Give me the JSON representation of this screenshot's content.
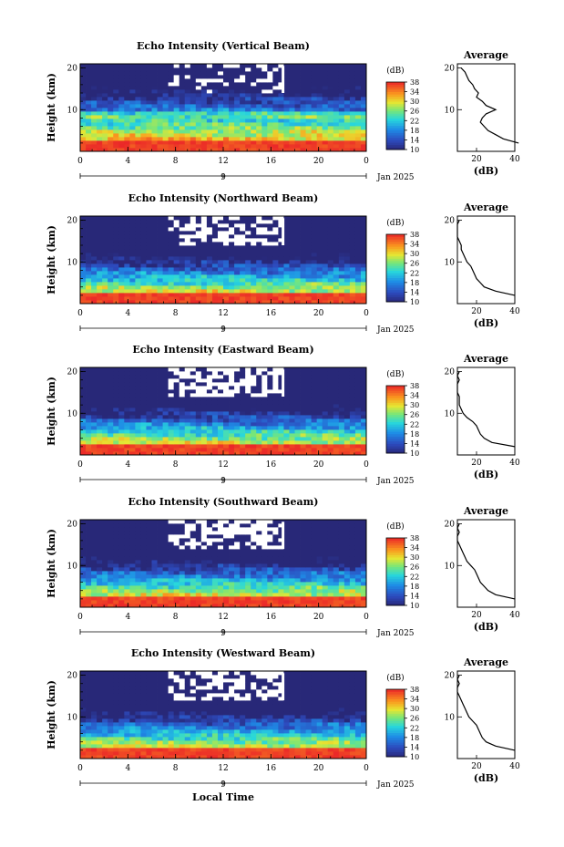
{
  "chart_data": [
    {
      "type": "heatmap",
      "title": "Echo Intensity (Vertical Beam)",
      "ylabel": "Height (km)",
      "xticks": [
        "0",
        "4",
        "8",
        "12",
        "16",
        "20",
        "0"
      ],
      "yticks": [
        "10",
        "20"
      ],
      "date_marker": "9",
      "date_label": "Jan 2025",
      "colorbar_unit": "(dB)",
      "colorbar_ticks": [
        "10",
        "14",
        "18",
        "22",
        "26",
        "30",
        "34",
        "38"
      ],
      "average": {
        "title": "Average",
        "xlabel": "(dB)",
        "xticks": [
          "20",
          "40"
        ],
        "yticks": [
          "10",
          "20"
        ],
        "height_km": [
          2,
          3,
          4,
          5,
          6,
          7,
          8,
          9,
          10,
          11,
          12,
          13,
          14,
          15,
          16,
          17,
          18,
          19,
          20
        ],
        "db": [
          42,
          34,
          30,
          26,
          24,
          22,
          23,
          25,
          30,
          25,
          23,
          20,
          21,
          19,
          18,
          16,
          15,
          14,
          12
        ]
      }
    },
    {
      "type": "heatmap",
      "title": "Echo Intensity (Northward Beam)",
      "ylabel": "Height (km)",
      "xticks": [
        "0",
        "4",
        "8",
        "12",
        "16",
        "20",
        "0"
      ],
      "yticks": [
        "10",
        "20"
      ],
      "date_marker": "9",
      "date_label": "Jan 2025",
      "colorbar_unit": "(dB)",
      "colorbar_ticks": [
        "10",
        "14",
        "18",
        "22",
        "26",
        "30",
        "34",
        "38"
      ],
      "average": {
        "title": "Average",
        "xlabel": "(dB)",
        "xticks": [
          "20",
          "40"
        ],
        "yticks": [
          "10",
          "20"
        ],
        "height_km": [
          2,
          3,
          4,
          5,
          6,
          7,
          8,
          9,
          10,
          11,
          12,
          13,
          14,
          15,
          16,
          17,
          18,
          19,
          20
        ],
        "db": [
          40,
          30,
          24,
          22,
          20,
          19,
          18,
          17,
          15,
          14,
          13,
          12,
          12,
          11,
          10,
          10,
          10,
          10,
          11
        ]
      }
    },
    {
      "type": "heatmap",
      "title": "Echo Intensity (Eastward Beam)",
      "ylabel": "Height (km)",
      "xticks": [
        "0",
        "4",
        "8",
        "12",
        "16",
        "20",
        "0"
      ],
      "yticks": [
        "10",
        "20"
      ],
      "date_marker": "9",
      "date_label": "Jan 2025",
      "colorbar_unit": "(dB)",
      "colorbar_ticks": [
        "10",
        "14",
        "18",
        "22",
        "26",
        "30",
        "34",
        "38"
      ],
      "average": {
        "title": "Average",
        "xlabel": "(dB)",
        "xticks": [
          "20",
          "40"
        ],
        "yticks": [
          "10",
          "20"
        ],
        "height_km": [
          2,
          3,
          4,
          5,
          6,
          7,
          8,
          9,
          10,
          11,
          12,
          13,
          14,
          15,
          16,
          17,
          18,
          19,
          20
        ],
        "db": [
          40,
          28,
          24,
          22,
          21,
          20,
          18,
          15,
          13,
          12,
          11,
          11,
          11,
          10,
          10,
          10,
          11,
          10,
          11
        ]
      }
    },
    {
      "type": "heatmap",
      "title": "Echo Intensity (Southward Beam)",
      "ylabel": "Height (km)",
      "xticks": [
        "0",
        "4",
        "8",
        "12",
        "16",
        "20",
        "0"
      ],
      "yticks": [
        "10",
        "20"
      ],
      "date_marker": "9",
      "date_label": "Jan 2025",
      "colorbar_unit": "(dB)",
      "colorbar_ticks": [
        "10",
        "14",
        "18",
        "22",
        "26",
        "30",
        "34",
        "38"
      ],
      "average": {
        "title": "Average",
        "xlabel": "(dB)",
        "xticks": [
          "20",
          "40"
        ],
        "yticks": [
          "10",
          "20"
        ],
        "height_km": [
          2,
          3,
          4,
          5,
          6,
          7,
          8,
          9,
          10,
          11,
          12,
          13,
          14,
          15,
          16,
          17,
          18,
          19,
          20
        ],
        "db": [
          40,
          30,
          26,
          24,
          22,
          21,
          20,
          19,
          17,
          15,
          14,
          13,
          12,
          11,
          10,
          10,
          11,
          10,
          11
        ]
      }
    },
    {
      "type": "heatmap",
      "title": "Echo Intensity (Westward Beam)",
      "ylabel": "Height (km)",
      "xlabel": "Local Time",
      "xticks": [
        "0",
        "4",
        "8",
        "12",
        "16",
        "20",
        "0"
      ],
      "yticks": [
        "10",
        "20"
      ],
      "date_marker": "9",
      "date_label": "Jan 2025",
      "colorbar_unit": "(dB)",
      "colorbar_ticks": [
        "10",
        "14",
        "18",
        "22",
        "26",
        "30",
        "34",
        "38"
      ],
      "average": {
        "title": "Average",
        "xlabel": "(dB)",
        "xticks": [
          "20",
          "40"
        ],
        "yticks": [
          "10",
          "20"
        ],
        "height_km": [
          2,
          3,
          4,
          5,
          6,
          7,
          8,
          9,
          10,
          11,
          12,
          13,
          14,
          15,
          16,
          17,
          18,
          19,
          20
        ],
        "db": [
          40,
          30,
          25,
          23,
          22,
          21,
          20,
          18,
          16,
          15,
          14,
          13,
          12,
          11,
          10,
          10,
          11,
          10,
          11
        ]
      }
    }
  ]
}
